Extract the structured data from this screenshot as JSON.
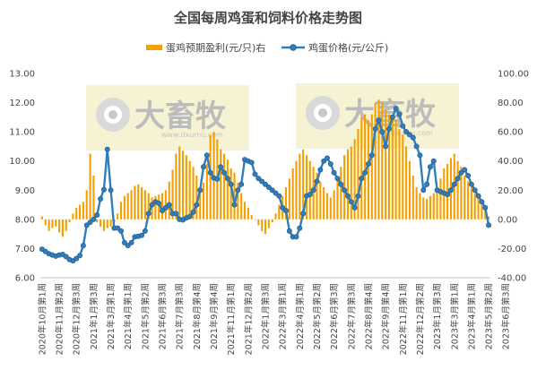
{
  "chart_data": {
    "type": "bar+line",
    "title": "全国每周鸡蛋和饲料价格走势图",
    "legend": [
      "蛋鸡预期盈利(元/只)右",
      "鸡蛋价格(元/公斤)"
    ],
    "legend_position": "top",
    "colors": {
      "bar": "#f5a000",
      "line": "#2f7fbf",
      "marker_edge": "#2c5f8f",
      "axis": "#444444"
    },
    "y_left": {
      "range": [
        6.0,
        13.0
      ],
      "ticks": [
        "6.00",
        "7.00",
        "8.00",
        "9.00",
        "10.00",
        "11.00",
        "12.00",
        "13.00"
      ]
    },
    "y_right": {
      "range": [
        -40.0,
        100.0
      ],
      "ticks": [
        "-40.00",
        "-20.00",
        "0.00",
        "20.00",
        "40.00",
        "60.00",
        "80.00",
        "100.00"
      ]
    },
    "x_tick_labels": [
      "2020年10月第1周",
      "2020年11月第2周",
      "2020年12月第3周",
      "2021年1月第3周",
      "2021年3月第1周",
      "2021年4月第1周",
      "2021年5月第2周",
      "2021年6月第3周",
      "2021年7月第3周",
      "2021年8月第4周",
      "2021年9月第4周",
      "2021年11月第1周",
      "2021年12月第2周",
      "2022年1月第3周",
      "2022年3月第1周",
      "2022年4月第1周",
      "2022年5月第2周",
      "2022年6月第3周",
      "2022年7月第3周",
      "2022年8月第4周",
      "2022年9月第4周",
      "2022年11月第1周",
      "2022年12月第2周",
      "2023年1月第3周",
      "2023年3月第1周",
      "2023年4月第1周",
      "2023年5月第2周",
      "2023年6月第3周"
    ],
    "x_tick_every": 5,
    "watermark": "大畜牧",
    "watermark_url": "www.dxumu.com",
    "series": [
      {
        "name": "蛋鸡预期盈利(元/只)右",
        "type": "bar",
        "axis": "right",
        "values": [
          2,
          -4,
          -8,
          -6,
          -5,
          -9,
          -12,
          -8,
          -2,
          4,
          8,
          10,
          12,
          20,
          45,
          30,
          -2,
          -5,
          -8,
          -6,
          -5,
          -2,
          4,
          12,
          16,
          18,
          20,
          23,
          24,
          22,
          20,
          18,
          15,
          16,
          17,
          18,
          20,
          26,
          34,
          45,
          50,
          47,
          44,
          40,
          36,
          30,
          20,
          25,
          38,
          58,
          60,
          55,
          48,
          45,
          41,
          35,
          32,
          25,
          18,
          12,
          8,
          3,
          0,
          -4,
          -8,
          -10,
          -6,
          -2,
          4,
          10,
          16,
          22,
          28,
          35,
          40,
          45,
          48,
          44,
          40,
          36,
          32,
          26,
          22,
          18,
          15,
          20,
          28,
          36,
          44,
          48,
          50,
          55,
          62,
          70,
          72,
          68,
          72,
          80,
          82,
          80,
          75,
          72,
          70,
          68,
          62,
          58,
          50,
          40,
          30,
          22,
          18,
          15,
          14,
          16,
          18,
          22,
          28,
          35,
          38,
          42,
          45,
          40,
          36,
          30,
          26,
          22,
          18,
          14,
          10,
          6,
          2
        ]
      },
      {
        "name": "鸡蛋价格(元/公斤)",
        "type": "line",
        "axis": "left",
        "values": [
          6.98,
          6.9,
          6.82,
          6.78,
          6.74,
          6.78,
          6.8,
          6.72,
          6.62,
          6.58,
          6.66,
          6.76,
          7.1,
          7.8,
          7.9,
          8.0,
          8.15,
          8.7,
          9.02,
          10.4,
          9.0,
          7.7,
          7.7,
          7.6,
          7.2,
          7.1,
          7.2,
          7.4,
          7.42,
          7.45,
          7.6,
          8.2,
          8.5,
          8.6,
          8.55,
          8.3,
          8.4,
          8.5,
          8.2,
          8.2,
          8.0,
          7.98,
          8.05,
          8.1,
          8.25,
          8.5,
          9.0,
          9.8,
          10.2,
          9.6,
          9.42,
          9.38,
          9.8,
          9.6,
          9.4,
          9.2,
          8.5,
          9.0,
          9.2,
          10.05,
          10.0,
          9.95,
          9.55,
          9.4,
          9.3,
          9.2,
          9.1,
          9.0,
          8.9,
          8.8,
          8.4,
          8.3,
          7.6,
          7.4,
          7.4,
          7.7,
          8.2,
          8.8,
          8.85,
          9.0,
          9.3,
          9.7,
          10.0,
          10.1,
          9.9,
          9.6,
          9.4,
          9.2,
          9.0,
          8.8,
          8.6,
          8.4,
          8.8,
          9.4,
          9.6,
          9.9,
          10.2,
          11.1,
          11.4,
          11.0,
          10.5,
          11.1,
          11.5,
          11.8,
          11.6,
          11.2,
          11.0,
          10.9,
          10.8,
          10.5,
          10.2,
          9.0,
          9.2,
          9.8,
          10.0,
          9.0,
          8.95,
          8.9,
          8.85,
          9.0,
          9.2,
          9.4,
          9.6,
          9.7,
          9.5,
          9.2,
          9.0,
          8.8,
          8.6,
          8.4,
          7.8
        ]
      }
    ]
  }
}
